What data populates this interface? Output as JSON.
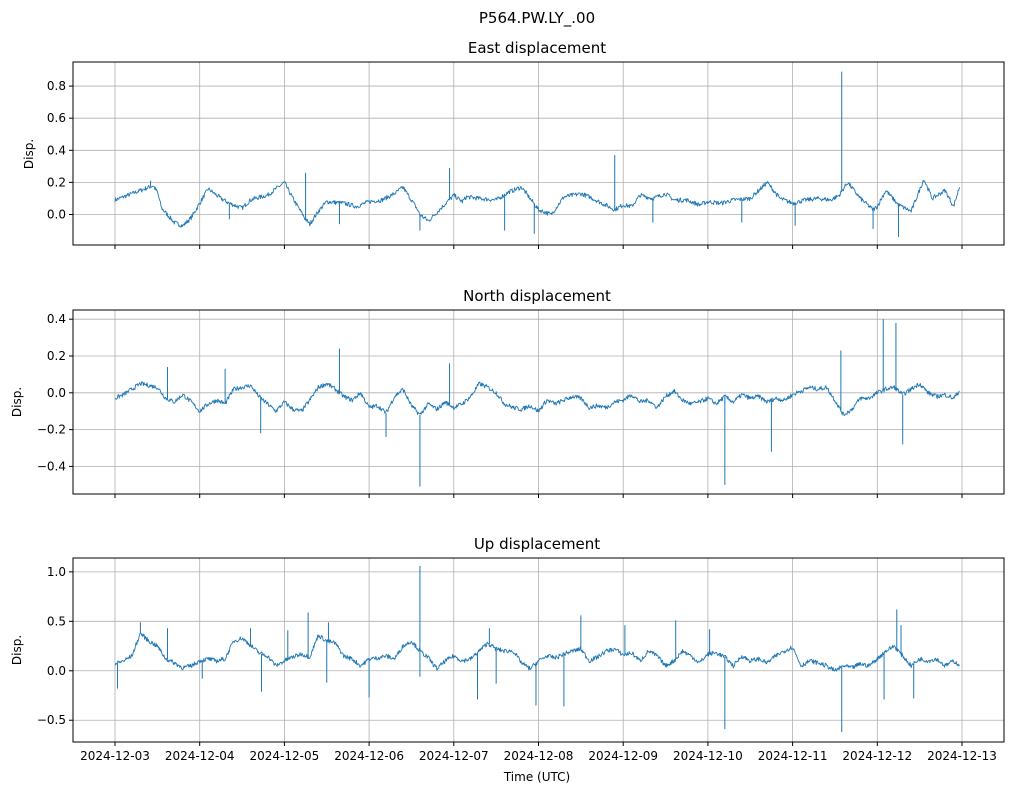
{
  "chart_data": [
    {
      "type": "line",
      "suptitle": "P564.PW.LY_.00",
      "title": "East displacement",
      "xlabel": "",
      "ylabel": "Disp.",
      "ylim": [
        -0.19,
        0.95
      ],
      "yticks": [
        0.0,
        0.2,
        0.4,
        0.6,
        0.8
      ],
      "ytick_labels": [
        "0.0",
        "0.2",
        "0.4",
        "0.6",
        "0.8"
      ],
      "xlim": [
        "2024-12-02T12:00",
        "2024-12-13T12:00"
      ],
      "grid": true,
      "series": [
        {
          "name": "East",
          "color": "#1f77b4",
          "x_days": [
            0,
            0.15,
            0.3,
            0.45,
            0.5,
            0.55,
            0.7,
            0.8,
            0.9,
            1.0,
            1.1,
            1.25,
            1.35,
            1.5,
            1.6,
            1.65,
            1.8,
            1.95,
            2.0,
            2.1,
            2.25,
            2.3,
            2.4,
            2.5,
            2.7,
            2.85,
            3.0,
            3.15,
            3.3,
            3.4,
            3.55,
            3.6,
            3.7,
            3.85,
            4.0,
            4.1,
            4.15,
            4.3,
            4.5,
            4.65,
            4.8,
            4.9,
            5.0,
            5.15,
            5.3,
            5.5,
            5.6,
            5.75,
            5.9,
            6.0,
            6.1,
            6.2,
            6.35,
            6.5,
            6.6,
            6.75,
            6.9,
            7.0,
            7.15,
            7.3,
            7.5,
            7.7,
            7.85,
            8.0,
            8.15,
            8.3,
            8.45,
            8.55,
            8.65,
            8.8,
            8.95,
            9.0,
            9.1,
            9.25,
            9.4,
            9.55,
            9.65,
            9.8,
            9.9,
            9.97
          ],
          "y": [
            0.09,
            0.12,
            0.15,
            0.18,
            0.14,
            0.04,
            -0.05,
            -0.07,
            -0.02,
            0.07,
            0.16,
            0.1,
            0.07,
            0.04,
            0.09,
            0.1,
            0.12,
            0.18,
            0.2,
            0.1,
            -0.03,
            -0.06,
            0.02,
            0.08,
            0.07,
            0.05,
            0.08,
            0.09,
            0.13,
            0.17,
            0.05,
            0.0,
            -0.04,
            0.04,
            0.12,
            0.08,
            0.11,
            0.1,
            0.09,
            0.14,
            0.17,
            0.1,
            0.03,
            0.0,
            0.11,
            0.13,
            0.11,
            0.07,
            0.03,
            0.06,
            0.05,
            0.12,
            0.1,
            0.13,
            0.09,
            0.09,
            0.06,
            0.08,
            0.07,
            0.09,
            0.1,
            0.2,
            0.1,
            0.07,
            0.09,
            0.1,
            0.09,
            0.12,
            0.2,
            0.1,
            0.03,
            0.05,
            0.15,
            0.06,
            0.02,
            0.22,
            0.1,
            0.15,
            0.05,
            0.17
          ],
          "spikes": [
            {
              "x_day": 0.42,
              "y": 0.21
            },
            {
              "x_day": 1.35,
              "y": -0.03
            },
            {
              "x_day": 2.25,
              "y": 0.26
            },
            {
              "x_day": 2.65,
              "y": -0.06
            },
            {
              "x_day": 3.95,
              "y": 0.29
            },
            {
              "x_day": 3.6,
              "y": -0.1
            },
            {
              "x_day": 4.6,
              "y": -0.1
            },
            {
              "x_day": 4.95,
              "y": -0.12
            },
            {
              "x_day": 5.9,
              "y": 0.37
            },
            {
              "x_day": 6.35,
              "y": -0.05
            },
            {
              "x_day": 7.4,
              "y": -0.05
            },
            {
              "x_day": 8.03,
              "y": -0.07
            },
            {
              "x_day": 8.58,
              "y": 0.89
            },
            {
              "x_day": 8.95,
              "y": -0.09
            },
            {
              "x_day": 9.25,
              "y": -0.14
            }
          ]
        }
      ]
    },
    {
      "type": "line",
      "title": "North displacement",
      "xlabel": "",
      "ylabel": "Disp.",
      "ylim": [
        -0.55,
        0.45
      ],
      "yticks": [
        -0.4,
        -0.2,
        0.0,
        0.2,
        0.4
      ],
      "ytick_labels": [
        "−0.4",
        "−0.2",
        "0.0",
        "0.2",
        "0.4"
      ],
      "xlim": [
        "2024-12-02T12:00",
        "2024-12-13T12:00"
      ],
      "grid": true,
      "series": [
        {
          "name": "North",
          "color": "#1f77b4",
          "x_days": [
            0,
            0.1,
            0.2,
            0.3,
            0.4,
            0.5,
            0.6,
            0.7,
            0.8,
            0.9,
            1.0,
            1.1,
            1.2,
            1.3,
            1.4,
            1.5,
            1.6,
            1.7,
            1.8,
            1.9,
            2.0,
            2.1,
            2.2,
            2.3,
            2.4,
            2.5,
            2.6,
            2.7,
            2.8,
            2.9,
            3.0,
            3.1,
            3.2,
            3.3,
            3.4,
            3.5,
            3.6,
            3.7,
            3.8,
            3.9,
            4.0,
            4.1,
            4.2,
            4.3,
            4.4,
            4.5,
            4.6,
            4.7,
            4.8,
            4.9,
            5.0,
            5.1,
            5.2,
            5.3,
            5.4,
            5.5,
            5.6,
            5.7,
            5.8,
            5.9,
            6.0,
            6.1,
            6.2,
            6.3,
            6.4,
            6.5,
            6.6,
            6.7,
            6.8,
            6.9,
            7.0,
            7.1,
            7.2,
            7.3,
            7.4,
            7.5,
            7.6,
            7.7,
            7.8,
            7.9,
            8.0,
            8.1,
            8.2,
            8.3,
            8.4,
            8.5,
            8.6,
            8.7,
            8.8,
            8.9,
            9.0,
            9.1,
            9.2,
            9.3,
            9.4,
            9.5,
            9.6,
            9.7,
            9.8,
            9.9,
            9.97
          ],
          "y": [
            -0.03,
            -0.01,
            0.02,
            0.05,
            0.04,
            0.03,
            -0.03,
            -0.05,
            -0.01,
            -0.05,
            -0.1,
            -0.06,
            -0.04,
            -0.06,
            0.02,
            0.03,
            0.04,
            -0.02,
            -0.06,
            -0.1,
            -0.05,
            -0.09,
            -0.1,
            -0.04,
            0.03,
            0.05,
            0.02,
            -0.02,
            -0.04,
            0.0,
            -0.08,
            -0.07,
            -0.11,
            -0.02,
            0.02,
            -0.07,
            -0.12,
            -0.06,
            -0.09,
            -0.05,
            -0.08,
            -0.06,
            -0.02,
            0.05,
            0.03,
            0.0,
            -0.06,
            -0.08,
            -0.09,
            -0.07,
            -0.1,
            -0.04,
            -0.06,
            -0.04,
            -0.02,
            -0.03,
            -0.08,
            -0.07,
            -0.08,
            -0.05,
            -0.04,
            -0.01,
            -0.05,
            -0.04,
            -0.08,
            -0.02,
            0.01,
            -0.04,
            -0.06,
            -0.05,
            -0.03,
            -0.06,
            -0.02,
            -0.05,
            -0.01,
            -0.03,
            -0.02,
            -0.05,
            -0.03,
            -0.04,
            -0.01,
            0.01,
            0.03,
            0.02,
            0.03,
            -0.04,
            -0.12,
            -0.09,
            -0.03,
            -0.03,
            0.0,
            0.02,
            0.03,
            -0.01,
            0.02,
            0.05,
            0.0,
            -0.02,
            -0.01,
            -0.03,
            0.01
          ],
          "spikes": [
            {
              "x_day": 0.62,
              "y": 0.14
            },
            {
              "x_day": 1.3,
              "y": 0.13
            },
            {
              "x_day": 1.72,
              "y": -0.22
            },
            {
              "x_day": 2.65,
              "y": 0.24
            },
            {
              "x_day": 3.2,
              "y": -0.24
            },
            {
              "x_day": 3.6,
              "y": -0.51
            },
            {
              "x_day": 3.95,
              "y": 0.16
            },
            {
              "x_day": 7.2,
              "y": -0.5
            },
            {
              "x_day": 7.75,
              "y": -0.32
            },
            {
              "x_day": 8.57,
              "y": 0.23
            },
            {
              "x_day": 9.07,
              "y": 0.4
            },
            {
              "x_day": 9.22,
              "y": 0.38
            },
            {
              "x_day": 9.3,
              "y": -0.28
            }
          ]
        }
      ]
    },
    {
      "type": "line",
      "title": "Up displacement",
      "xlabel": "Time (UTC)",
      "ylabel": "Disp.",
      "ylim": [
        -0.72,
        1.14
      ],
      "yticks": [
        -0.5,
        0.0,
        0.5,
        1.0
      ],
      "ytick_labels": [
        "−0.5",
        "0.0",
        "0.5",
        "1.0"
      ],
      "xlim": [
        "2024-12-02T12:00",
        "2024-12-13T12:00"
      ],
      "xtick_labels": [
        "2024-12-03",
        "2024-12-04",
        "2024-12-05",
        "2024-12-06",
        "2024-12-07",
        "2024-12-08",
        "2024-12-09",
        "2024-12-10",
        "2024-12-11",
        "2024-12-12",
        "2024-12-13"
      ],
      "grid": true,
      "series": [
        {
          "name": "Up",
          "color": "#1f77b4",
          "x_days": [
            0,
            0.1,
            0.2,
            0.3,
            0.4,
            0.5,
            0.6,
            0.7,
            0.8,
            0.9,
            1.0,
            1.1,
            1.2,
            1.3,
            1.4,
            1.5,
            1.6,
            1.7,
            1.8,
            1.9,
            2.0,
            2.1,
            2.2,
            2.3,
            2.4,
            2.5,
            2.6,
            2.7,
            2.8,
            2.9,
            3.0,
            3.1,
            3.2,
            3.3,
            3.4,
            3.5,
            3.6,
            3.7,
            3.8,
            3.9,
            4.0,
            4.1,
            4.2,
            4.3,
            4.4,
            4.5,
            4.6,
            4.7,
            4.8,
            4.9,
            5.0,
            5.1,
            5.2,
            5.3,
            5.4,
            5.5,
            5.6,
            5.7,
            5.8,
            5.9,
            6.0,
            6.1,
            6.2,
            6.3,
            6.4,
            6.5,
            6.6,
            6.7,
            6.8,
            6.9,
            7.0,
            7.1,
            7.2,
            7.3,
            7.4,
            7.5,
            7.6,
            7.7,
            7.8,
            7.9,
            8.0,
            8.1,
            8.2,
            8.3,
            8.4,
            8.5,
            8.6,
            8.7,
            8.8,
            8.9,
            9.0,
            9.1,
            9.2,
            9.3,
            9.4,
            9.5,
            9.6,
            9.7,
            9.8,
            9.9,
            9.97
          ],
          "y": [
            0.07,
            0.1,
            0.15,
            0.38,
            0.3,
            0.25,
            0.12,
            0.08,
            0.03,
            0.05,
            0.1,
            0.12,
            0.1,
            0.12,
            0.3,
            0.33,
            0.26,
            0.18,
            0.15,
            0.05,
            0.1,
            0.14,
            0.17,
            0.14,
            0.36,
            0.3,
            0.28,
            0.15,
            0.12,
            0.05,
            0.12,
            0.13,
            0.15,
            0.12,
            0.25,
            0.3,
            0.2,
            0.13,
            0.02,
            0.1,
            0.15,
            0.1,
            0.12,
            0.2,
            0.28,
            0.22,
            0.2,
            0.2,
            0.08,
            0.02,
            0.1,
            0.15,
            0.13,
            0.17,
            0.2,
            0.22,
            0.1,
            0.14,
            0.2,
            0.22,
            0.16,
            0.18,
            0.1,
            0.2,
            0.15,
            0.05,
            0.1,
            0.2,
            0.15,
            0.08,
            0.17,
            0.18,
            0.14,
            0.05,
            0.15,
            0.1,
            0.12,
            0.08,
            0.15,
            0.2,
            0.24,
            0.05,
            0.1,
            0.08,
            0.05,
            0.0,
            0.05,
            0.03,
            0.07,
            0.05,
            0.12,
            0.2,
            0.25,
            0.15,
            0.05,
            0.12,
            0.1,
            0.12,
            0.05,
            0.1,
            0.06
          ],
          "spikes": [
            {
              "x_day": 0.03,
              "y": -0.18
            },
            {
              "x_day": 0.3,
              "y": 0.49
            },
            {
              "x_day": 0.62,
              "y": 0.43
            },
            {
              "x_day": 1.03,
              "y": -0.08
            },
            {
              "x_day": 1.6,
              "y": 0.43
            },
            {
              "x_day": 1.73,
              "y": -0.21
            },
            {
              "x_day": 2.04,
              "y": 0.41
            },
            {
              "x_day": 2.28,
              "y": 0.59
            },
            {
              "x_day": 2.5,
              "y": -0.12
            },
            {
              "x_day": 2.52,
              "y": 0.49
            },
            {
              "x_day": 3.0,
              "y": -0.27
            },
            {
              "x_day": 3.6,
              "y": 1.06
            },
            {
              "x_day": 3.6,
              "y": -0.06
            },
            {
              "x_day": 4.28,
              "y": -0.29
            },
            {
              "x_day": 4.42,
              "y": 0.43
            },
            {
              "x_day": 4.5,
              "y": -0.13
            },
            {
              "x_day": 4.97,
              "y": -0.35
            },
            {
              "x_day": 5.3,
              "y": -0.36
            },
            {
              "x_day": 5.5,
              "y": 0.56
            },
            {
              "x_day": 6.02,
              "y": 0.46
            },
            {
              "x_day": 6.62,
              "y": 0.51
            },
            {
              "x_day": 7.02,
              "y": 0.42
            },
            {
              "x_day": 7.2,
              "y": -0.59
            },
            {
              "x_day": 8.58,
              "y": -0.62
            },
            {
              "x_day": 9.08,
              "y": -0.29
            },
            {
              "x_day": 9.23,
              "y": 0.62
            },
            {
              "x_day": 9.28,
              "y": 0.46
            },
            {
              "x_day": 9.43,
              "y": -0.28
            }
          ]
        }
      ]
    }
  ]
}
